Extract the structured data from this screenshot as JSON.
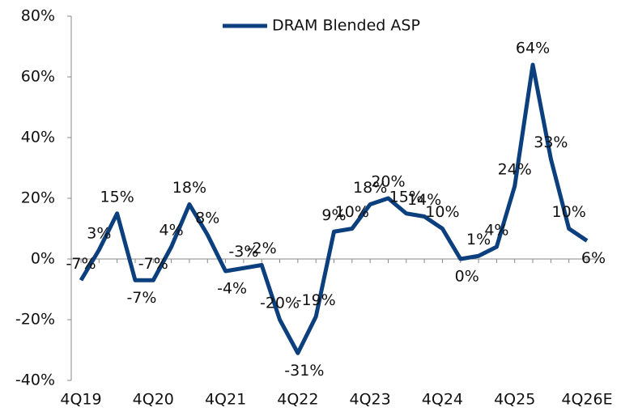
{
  "chart_data": {
    "type": "line",
    "categories": [
      "4Q19",
      null,
      null,
      null,
      "4Q20",
      null,
      null,
      null,
      "4Q21",
      null,
      null,
      null,
      "4Q22",
      null,
      null,
      null,
      "4Q23",
      null,
      null,
      null,
      "4Q24",
      null,
      null,
      null,
      "4Q25",
      null,
      null,
      null,
      "4Q26E"
    ],
    "series": [
      {
        "name": "DRAM Blended ASP",
        "color": "#0b3f7e",
        "values": [
          -7,
          3,
          15,
          -7,
          -7,
          4,
          18,
          8,
          -4,
          -3,
          -2,
          -20,
          -31,
          -19,
          9,
          10,
          18,
          20,
          15,
          14,
          10,
          0,
          1,
          4,
          24,
          64,
          33,
          10,
          6
        ],
        "value_labels": [
          "-7%",
          "3%",
          "15%",
          "-7%",
          "-7%",
          "4%",
          "18%",
          "8%",
          "-4%",
          "-3%",
          "-2%",
          "-20%",
          "-31%",
          "-19%",
          "9%",
          "10%",
          "18%",
          "20%",
          "15%",
          "14%",
          "10%",
          "0%",
          "1%",
          "4%",
          "24%",
          "64%",
          "33%",
          "10%",
          "6%"
        ]
      }
    ],
    "ylim": [
      -40,
      80
    ],
    "yticks": [
      {
        "value": -40,
        "label": "-40%"
      },
      {
        "value": -20,
        "label": "-20%"
      },
      {
        "value": 0,
        "label": "0%"
      },
      {
        "value": 20,
        "label": "20%"
      },
      {
        "value": 40,
        "label": "40%"
      },
      {
        "value": 60,
        "label": "60%"
      },
      {
        "value": 80,
        "label": "80%"
      }
    ],
    "legend": "top"
  }
}
